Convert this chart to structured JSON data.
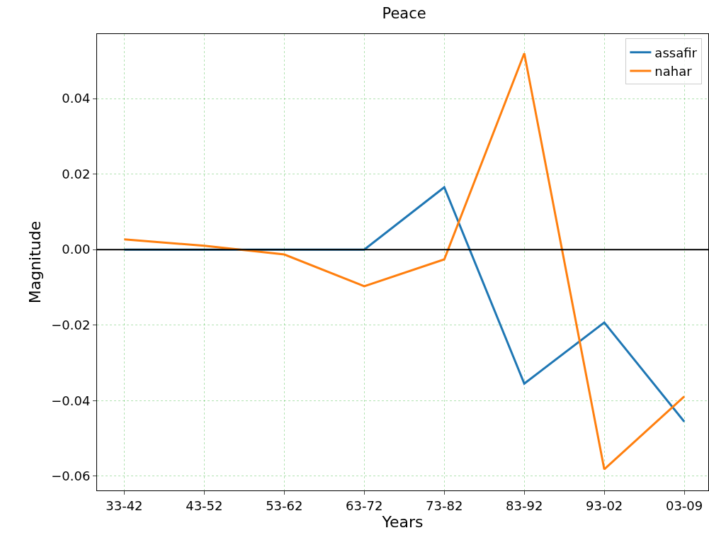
{
  "chart_data": {
    "type": "line",
    "title": "Peace",
    "xlabel": "Years",
    "ylabel": "Magnitude",
    "categories": [
      "33-42",
      "43-52",
      "53-62",
      "63-72",
      "73-82",
      "83-92",
      "93-02",
      "03-09"
    ],
    "series": [
      {
        "name": "assafir",
        "color": "#1f77b4",
        "values": [
          0,
          0,
          0,
          0,
          0.0165,
          -0.0355,
          -0.0193,
          -0.0456
        ]
      },
      {
        "name": "nahar",
        "color": "#ff7f0e",
        "values": [
          0.0027,
          0.001,
          -0.0013,
          -0.0097,
          -0.0026,
          0.052,
          -0.0582,
          -0.0389
        ]
      }
    ],
    "ylim": [
      -0.0638,
      0.0571
    ],
    "yticks": [
      {
        "value": -0.06,
        "label": "−0.06"
      },
      {
        "value": -0.04,
        "label": "−0.04"
      },
      {
        "value": -0.02,
        "label": "−0.02"
      },
      {
        "value": 0,
        "label": "0.00"
      },
      {
        "value": 0.02,
        "label": "0.02"
      },
      {
        "value": 0.04,
        "label": "0.04"
      }
    ],
    "ref_lines": [
      {
        "axis": "y",
        "value": 0,
        "color": "#000000"
      }
    ],
    "grid": true,
    "legend": "top right",
    "marker": "none",
    "line_style": "solid"
  }
}
